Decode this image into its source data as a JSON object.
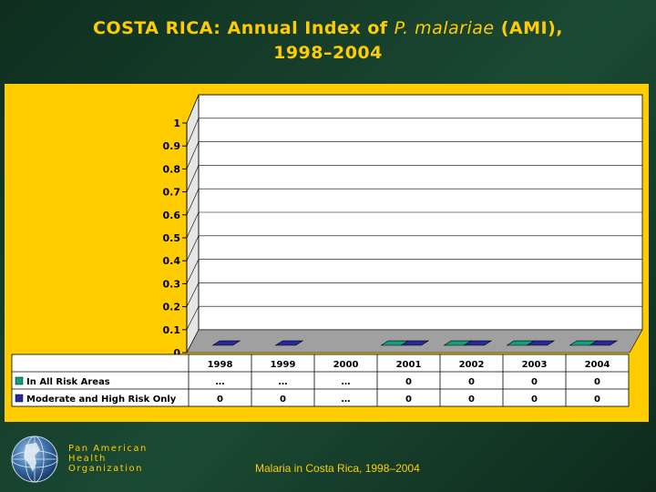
{
  "slide": {
    "title_prefix": "COSTA RICA: Annual Index of",
    "title_italic": "P. malariae",
    "title_suffix": "(AMI),",
    "title_line2": "1998–2004",
    "org_line1": "Pan American",
    "org_line2": "Health",
    "org_line3": "Organization",
    "footer": "Malaria in Costa Rica, 1998–2004"
  },
  "colors": {
    "background": "#ffcc00",
    "plot_area": "#ffffff",
    "floor": "#a0a0a0",
    "series_1": "#10a080",
    "series_2": "#2828a0"
  },
  "chart_data": {
    "type": "bar",
    "title": "COSTA RICA: Annual Index of P. malariae (AMI), 1998–2004",
    "xlabel": "",
    "ylabel": "",
    "ylim": [
      0,
      1
    ],
    "yticks": [
      "0",
      "0.1",
      "0.2",
      "0.3",
      "0.4",
      "0.5",
      "0.6",
      "0.7",
      "0.8",
      "0.9",
      "1"
    ],
    "categories": [
      "1998",
      "1999",
      "2000",
      "2001",
      "2002",
      "2003",
      "2004"
    ],
    "series": [
      {
        "name": "In All Risk Areas",
        "values": [
          null,
          null,
          null,
          0,
          0,
          0,
          0
        ],
        "labels": [
          "…",
          "…",
          "…",
          "0",
          "0",
          "0",
          "0"
        ]
      },
      {
        "name": "Moderate and High Risk Only",
        "values": [
          0,
          0,
          null,
          0,
          0,
          0,
          0
        ],
        "labels": [
          "0",
          "0",
          "…",
          "0",
          "0",
          "0",
          "0"
        ]
      }
    ],
    "legend": "data-table"
  }
}
